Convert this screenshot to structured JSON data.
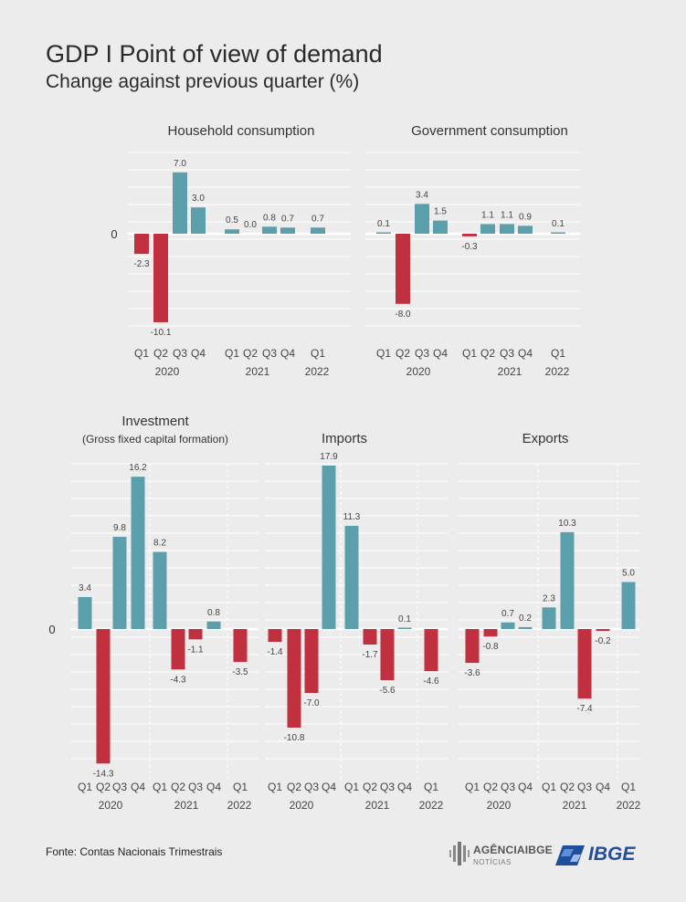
{
  "title": "GDP I Point of view of demand",
  "subtitle": "Change against previous quarter (%)",
  "source": "Fonte: Contas Nacionais Trimestrais",
  "logos": {
    "agencia_word": "AGÊNCIAIBGE",
    "agencia_sub": "NOTÍCIAS",
    "ibge": "IBGE"
  },
  "colors": {
    "positive": "#5b9fad",
    "negative": "#c0303e",
    "background": "#ececec",
    "grid": "#ffffff"
  },
  "chart_data": [
    {
      "type": "bar",
      "title": "Household consumption",
      "subtitle": "",
      "zero_label": "0",
      "categories": [
        "Q1",
        "Q2",
        "Q3",
        "Q4",
        "Q1",
        "Q2",
        "Q3",
        "Q4",
        "Q1"
      ],
      "years": [
        "2020",
        "2021",
        "2022"
      ],
      "values": [
        -2.3,
        -10.1,
        7.0,
        3.0,
        0.5,
        0.0,
        0.8,
        0.7,
        0.7
      ],
      "labels": [
        "-2.3",
        "-10.1",
        "7.0",
        "3.0",
        "0.5",
        "0.0",
        "0.8",
        "0.7",
        "0.7"
      ],
      "ylim": [
        -12,
        9
      ]
    },
    {
      "type": "bar",
      "title": "Government consumption",
      "subtitle": "",
      "zero_label": "",
      "categories": [
        "Q1",
        "Q2",
        "Q3",
        "Q4",
        "Q1",
        "Q2",
        "Q3",
        "Q4",
        "Q1"
      ],
      "years": [
        "2020",
        "2021",
        "2022"
      ],
      "values": [
        0.1,
        -8.0,
        3.4,
        1.5,
        -0.3,
        1.1,
        1.1,
        0.9,
        0.1
      ],
      "labels": [
        "0.1",
        "-8.0",
        "3.4",
        "1.5",
        "-0.3",
        "1.1",
        "1.1",
        "0.9",
        "0.1"
      ],
      "ylim": [
        -12,
        9
      ]
    },
    {
      "type": "bar",
      "title": "Investment",
      "subtitle": "(Gross fixed capital formation)",
      "zero_label": "0",
      "categories": [
        "Q1",
        "Q2",
        "Q3",
        "Q4",
        "Q1",
        "Q2",
        "Q3",
        "Q4",
        "Q1"
      ],
      "years": [
        "2020",
        "2021",
        "2022"
      ],
      "values": [
        3.4,
        -14.3,
        9.8,
        16.2,
        8.2,
        -4.3,
        -1.1,
        0.8,
        -3.5
      ],
      "labels": [
        "3.4",
        "-14.3",
        "9.8",
        "16.2",
        "8.2",
        "-4.3",
        "-1.1",
        "0.8",
        "-3.5"
      ],
      "ylim": [
        -16,
        18
      ]
    },
    {
      "type": "bar",
      "title": "Imports",
      "subtitle": "",
      "zero_label": "",
      "categories": [
        "Q1",
        "Q2",
        "Q3",
        "Q4",
        "Q1",
        "Q2",
        "Q3",
        "Q4",
        "Q1"
      ],
      "years": [
        "2020",
        "2021",
        "2022"
      ],
      "values": [
        -1.4,
        -10.8,
        -7.0,
        17.9,
        11.3,
        -1.7,
        -5.6,
        0.1,
        -4.6
      ],
      "labels": [
        "-1.4",
        "-10.8",
        "-7.0",
        "17.9",
        "11.3",
        "-1.7",
        "-5.6",
        "0.1",
        "-4.6"
      ],
      "ylim": [
        -16,
        18
      ]
    },
    {
      "type": "bar",
      "title": "Exports",
      "subtitle": "",
      "zero_label": "",
      "categories": [
        "Q1",
        "Q2",
        "Q3",
        "Q4",
        "Q1",
        "Q2",
        "Q3",
        "Q4",
        "Q1"
      ],
      "years": [
        "2020",
        "2021",
        "2022"
      ],
      "values": [
        -3.6,
        -0.8,
        0.7,
        0.2,
        2.3,
        10.3,
        -7.4,
        -0.2,
        5.0
      ],
      "labels": [
        "-3.6",
        "-0.8",
        "0.7",
        "0.2",
        "2.3",
        "10.3",
        "-7.4",
        "-0.2",
        "5.0"
      ],
      "ylim": [
        -16,
        18
      ]
    }
  ]
}
